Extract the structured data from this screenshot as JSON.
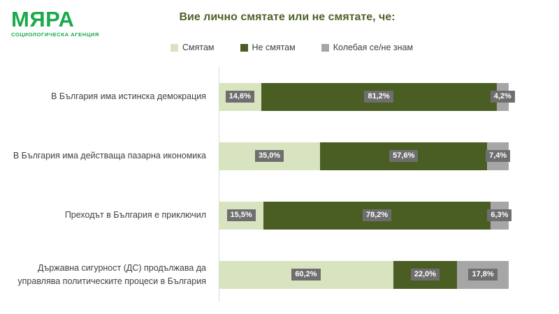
{
  "logo": {
    "name": "МЯРА",
    "tagline": "СОЦИОЛОГИЧЕСКА АГЕНЦИЯ",
    "color": "#1ba94c"
  },
  "title": "Вие лично смятате или не смятате, че:",
  "colors": {
    "title": "#4f6228",
    "text": "#404040",
    "value_label_bg": "#6e6e6e",
    "value_label_text": "#ffffff",
    "axis_line": "#d9d9d9",
    "background": "#ffffff"
  },
  "legend": [
    {
      "label": "Смятам",
      "color": "#d8e4bf"
    },
    {
      "label": "Не смятам",
      "color": "#4a5e24"
    },
    {
      "label": "Колебая се/не знам",
      "color": "#a6a6a6"
    }
  ],
  "chart_data": {
    "type": "bar",
    "orientation": "horizontal",
    "stacked": true,
    "title": "Вие лично смятате или не смятате, че:",
    "xlim": [
      0,
      100
    ],
    "grid": false,
    "legend_position": "top",
    "categories": [
      "В България има истинска демокрация",
      "В България има действаща пазарна икономика",
      "Преходът в България е приключил",
      "Държавна сигурност (ДС) продължава да управлява политическите процеси в България"
    ],
    "series": [
      {
        "name": "Смятам",
        "color": "#d8e4bf",
        "values": [
          14.6,
          35.0,
          15.5,
          60.2
        ]
      },
      {
        "name": "Не смятам",
        "color": "#4a5e24",
        "values": [
          81.2,
          57.6,
          78.2,
          22.0
        ]
      },
      {
        "name": "Колебая се/не знам",
        "color": "#a6a6a6",
        "values": [
          4.2,
          7.4,
          6.3,
          17.8
        ]
      }
    ],
    "value_labels": [
      [
        "14,6%",
        "81,2%",
        "4,2%"
      ],
      [
        "35,0%",
        "57,6%",
        "7,4%"
      ],
      [
        "15,5%",
        "78,2%",
        "6,3%"
      ],
      [
        "60,2%",
        "22,0%",
        "17,8%"
      ]
    ]
  }
}
